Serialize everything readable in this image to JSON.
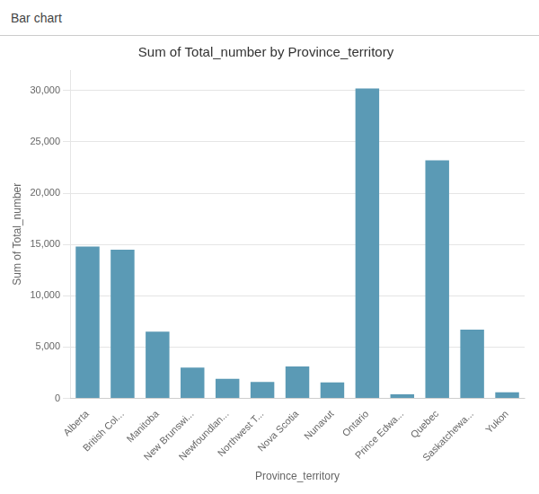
{
  "chart_data": {
    "type": "bar",
    "title": "Sum of Total_number by Province_territory",
    "annotations": [
      "Bar chart"
    ],
    "xlabel": "Province_territory",
    "ylabel": "Sum of Total_number",
    "categories": [
      "Alberta",
      "British Col...",
      "Manitoba",
      "New Brunswi...",
      "Newfoundlan...",
      "Northwest T...",
      "Nova Scotia",
      "Nunavut",
      "Ontario",
      "Prince Edwa...",
      "Quebec",
      "Saskatchewa...",
      "Yukon"
    ],
    "values": [
      14800,
      14500,
      6500,
      3000,
      1900,
      1600,
      3100,
      1550,
      30200,
      400,
      23200,
      6700,
      600
    ],
    "color": "#5b9ab5",
    "ylim": [
      0,
      32000
    ],
    "yticks": [
      0,
      {
        "value": 5000,
        "label": "5,000"
      },
      {
        "value": 10000,
        "label": "10,000"
      },
      {
        "value": 15000,
        "label": "15,000"
      },
      {
        "value": 20000,
        "label": "20,000"
      },
      {
        "value": 25000,
        "label": "25,000"
      },
      {
        "value": 30000,
        "label": "30,000"
      }
    ],
    "grid": true
  }
}
